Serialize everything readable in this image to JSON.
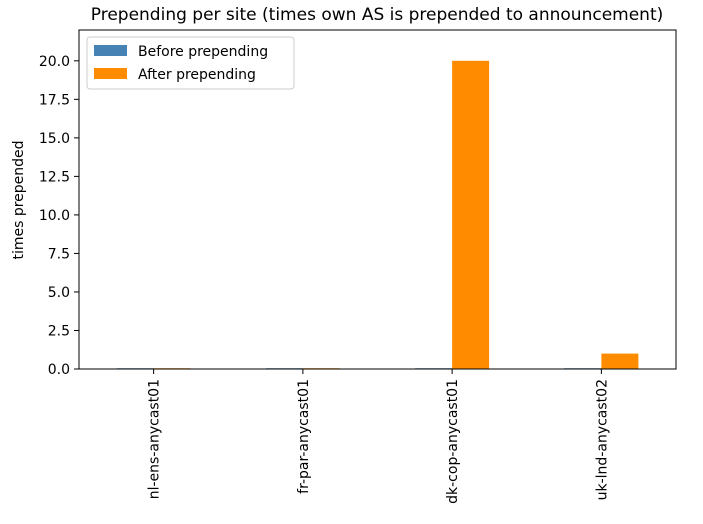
{
  "chart_data": {
    "type": "bar",
    "title": "Prepending per site (times own AS is prepended to announcement)",
    "xlabel": "",
    "ylabel": "times prepended",
    "categories": [
      "nl-ens-anycast01",
      "fr-par-anycast01",
      "dk-cop-anycast01",
      "uk-lnd-anycast02"
    ],
    "series": [
      {
        "name": "Before prepending",
        "color": "#4682b4",
        "values": [
          0.05,
          0.05,
          0.05,
          0.05
        ]
      },
      {
        "name": "After prepending",
        "color": "#ff8c00",
        "values": [
          0.05,
          0.05,
          20,
          1
        ]
      }
    ],
    "ylim": [
      0,
      22
    ],
    "yticks": [
      0.0,
      2.5,
      5.0,
      7.5,
      10.0,
      12.5,
      15.0,
      17.5,
      20.0
    ],
    "ytick_labels": [
      "0.0",
      "2.5",
      "5.0",
      "7.5",
      "10.0",
      "12.5",
      "15.0",
      "17.5",
      "20.0"
    ],
    "grid": false,
    "legend_position": "top-left"
  }
}
